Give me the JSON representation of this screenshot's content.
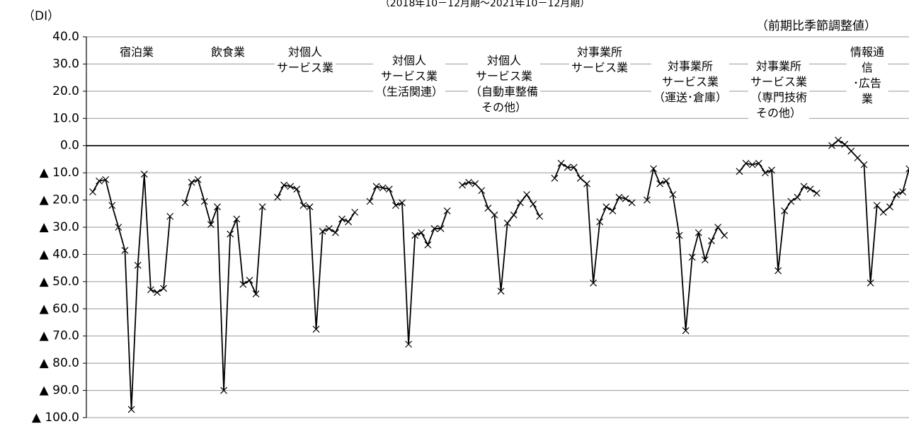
{
  "chart_data": {
    "type": "line",
    "subtitle": "（2018年10－12月期～2021年10－12月期）",
    "y_label": "（DI）",
    "note": "（前期比季節調整値）",
    "ylim": [
      -100,
      40
    ],
    "yticks": [
      {
        "value": 40,
        "label": "40.0"
      },
      {
        "value": 30,
        "label": "30.0"
      },
      {
        "value": 20,
        "label": "20.0"
      },
      {
        "value": 10,
        "label": "10.0"
      },
      {
        "value": 0,
        "label": "0.0"
      },
      {
        "value": -10,
        "label": "▲ 10.0"
      },
      {
        "value": -20,
        "label": "▲ 20.0"
      },
      {
        "value": -30,
        "label": "▲ 30.0"
      },
      {
        "value": -40,
        "label": "▲ 40.0"
      },
      {
        "value": -50,
        "label": "▲ 50.0"
      },
      {
        "value": -60,
        "label": "▲ 60.0"
      },
      {
        "value": -70,
        "label": "▲ 70.0"
      },
      {
        "value": -80,
        "label": "▲ 80.0"
      },
      {
        "value": -90,
        "label": "▲ 90.0"
      },
      {
        "value": -100,
        "label": "▲ 100.0"
      }
    ],
    "grid": true,
    "series": [
      {
        "name": "宿泊業",
        "color": "#000000",
        "values": [
          -17,
          -13,
          -12.5,
          -22,
          -30,
          -38.5,
          -97,
          -44,
          -10.5,
          -53,
          -54,
          -52.5,
          -26
        ]
      },
      {
        "name": "飲食業",
        "color": "#000000",
        "values": [
          -21,
          -13.5,
          -12.5,
          -20.5,
          -29,
          -22.5,
          -90,
          -32.5,
          -27,
          -51,
          -49.5,
          -54.5,
          -22.5
        ]
      },
      {
        "name": "対個人\nサービス業",
        "color": "#000000",
        "values": [
          -19,
          -14.5,
          -15,
          -16,
          -22,
          -22.5,
          -67.5,
          -31.5,
          -30.5,
          -32,
          -27,
          -28,
          -24.5
        ]
      },
      {
        "name": "対個人\nサービス業\n（生活関連）",
        "color": "#000000",
        "values": [
          -20.5,
          -15,
          -15.5,
          -16,
          -22,
          -21,
          -73,
          -33,
          -32,
          -36.5,
          -30.5,
          -30.5,
          -24
        ]
      },
      {
        "name": "対個人\nサービス業\n（自動車整備\nその他）",
        "color": "#000000",
        "values": [
          -14.5,
          -13.5,
          -14,
          -16.5,
          -23,
          -25.5,
          -53.5,
          -28.5,
          -25.5,
          -21,
          -18,
          -21.5,
          -26
        ]
      },
      {
        "name": "対事業所\nサービス業",
        "color": "#000000",
        "values": [
          -12,
          -6.5,
          -8,
          -8,
          -12,
          -14,
          -50.5,
          -28,
          -22.5,
          -24,
          -19,
          -19.5,
          -21
        ]
      },
      {
        "name": "対事業所\nサービス業\n（運送･倉庫）",
        "color": "#000000",
        "values": [
          -20,
          -8.5,
          -14,
          -13,
          -18,
          -33,
          -68,
          -41,
          -32,
          -42,
          -35,
          -30,
          -33
        ]
      },
      {
        "name": "対事業所\nサービス業\n（専門技術\nその他）",
        "color": "#000000",
        "values": [
          -9.5,
          -6.5,
          -7,
          -6.5,
          -10,
          -9,
          -46,
          -24,
          -20.5,
          -19,
          -15,
          -16,
          -17.5
        ]
      },
      {
        "name": "情報通信\n･広告業",
        "color": "#000000",
        "values": [
          0,
          2,
          0.5,
          -2,
          -4.5,
          -7,
          -50.5,
          -22,
          -24.5,
          -22.5,
          -18,
          -17,
          -8.5
        ]
      }
    ]
  }
}
